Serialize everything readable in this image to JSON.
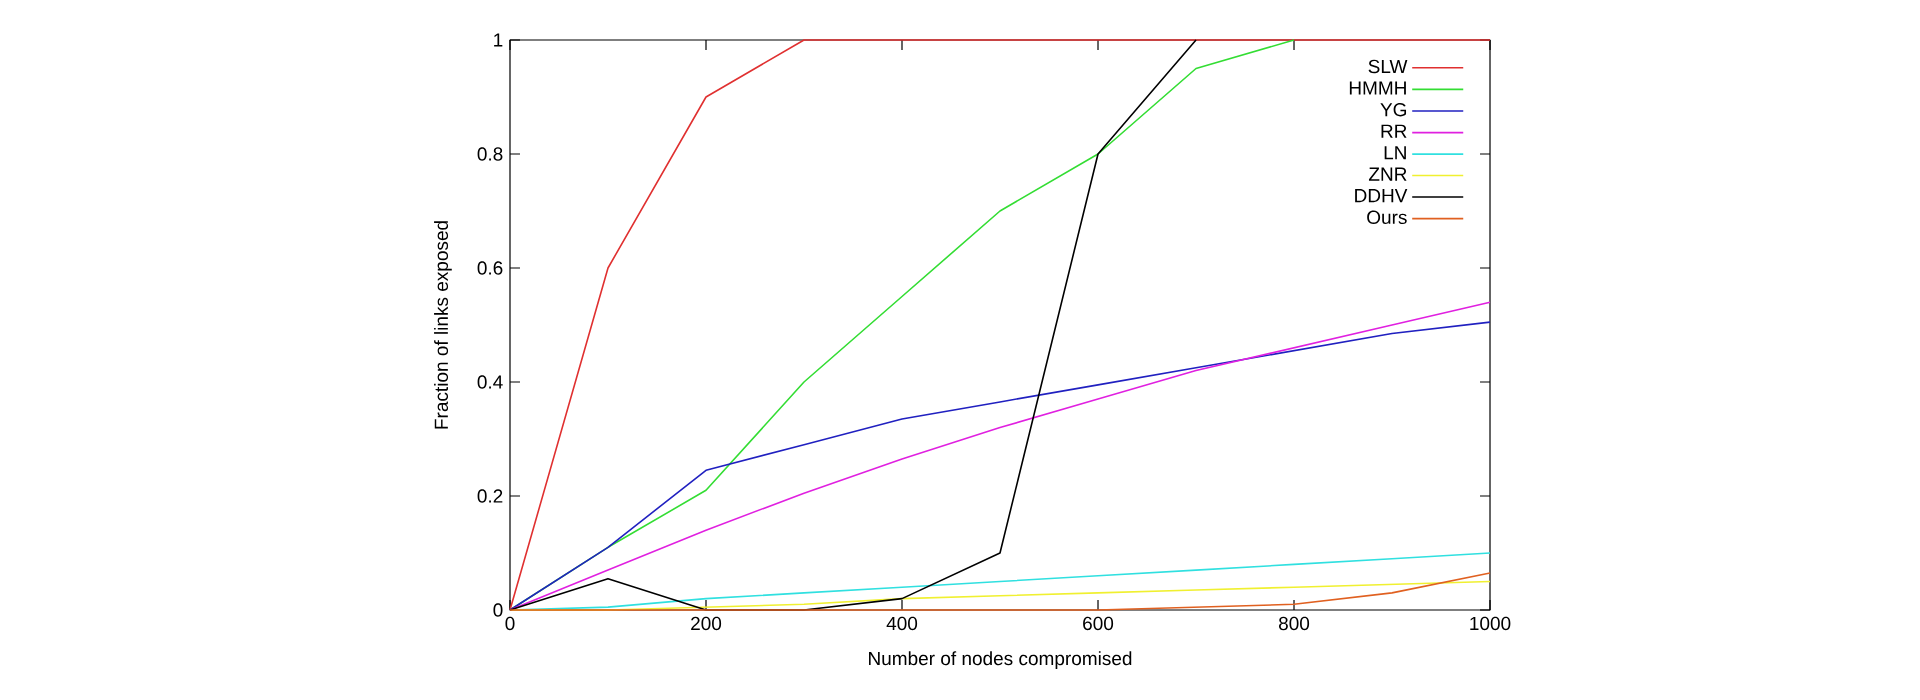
{
  "chart_data": {
    "type": "line",
    "xlabel": "Number of nodes compromised",
    "ylabel": "Fraction of links exposed",
    "x": [
      0,
      100,
      200,
      300,
      400,
      500,
      600,
      700,
      800,
      900,
      1000
    ],
    "xlim": [
      0,
      1000
    ],
    "ylim": [
      0,
      1
    ],
    "xticks": [
      0,
      200,
      400,
      600,
      800,
      1000
    ],
    "yticks": [
      0,
      0.2,
      0.4,
      0.6,
      0.8,
      1
    ],
    "legend": "top right",
    "grid": false,
    "series": [
      {
        "name": "SLW",
        "color": "#e03030",
        "values": [
          0,
          0.6,
          0.9,
          1.0,
          1.0,
          1.0,
          1.0,
          1.0,
          1.0,
          1.0,
          1.0
        ]
      },
      {
        "name": "HMMH",
        "color": "#33dd33",
        "values": [
          0,
          0.11,
          0.21,
          0.4,
          0.55,
          0.7,
          0.8,
          0.95,
          1.0,
          null,
          null
        ]
      },
      {
        "name": "YG",
        "color": "#2020c0",
        "values": [
          0,
          0.11,
          0.245,
          0.29,
          0.335,
          0.365,
          0.395,
          0.425,
          0.455,
          0.485,
          0.505
        ]
      },
      {
        "name": "RR",
        "color": "#e020e0",
        "values": [
          0,
          0.07,
          0.14,
          0.205,
          0.265,
          0.32,
          0.37,
          0.42,
          0.46,
          0.5,
          0.54
        ]
      },
      {
        "name": "LN",
        "color": "#30e0e0",
        "values": [
          0,
          0.005,
          0.02,
          0.03,
          0.04,
          0.05,
          0.06,
          0.07,
          0.08,
          0.09,
          0.1
        ]
      },
      {
        "name": "ZNR",
        "color": "#f0f030",
        "values": [
          0,
          0,
          0.005,
          0.01,
          0.02,
          0.025,
          0.03,
          0.035,
          0.04,
          0.045,
          0.05
        ]
      },
      {
        "name": "DDHV",
        "color": "#000000",
        "values": [
          0,
          0.055,
          0,
          0,
          0.02,
          0.1,
          0.8,
          1.0,
          null,
          null,
          null
        ]
      },
      {
        "name": "Ours",
        "color": "#e06020",
        "values": [
          0,
          0,
          0,
          0,
          0,
          0,
          0,
          0.005,
          0.01,
          0.03,
          0.065
        ]
      }
    ]
  }
}
